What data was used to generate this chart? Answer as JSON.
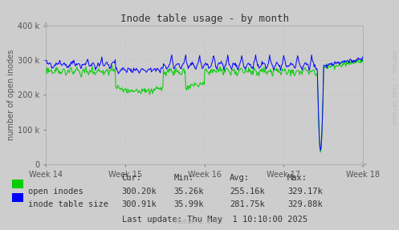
{
  "title": "Inode table usage - by month",
  "ylabel": "number of open inodes",
  "background_color": "#CDCDCD",
  "plot_bg_color": "#CDCDCD",
  "grid_color": "#BBBBBB",
  "x_labels": [
    "Week 14",
    "Week 15",
    "Week 16",
    "Week 17",
    "Week 18"
  ],
  "ylim": [
    0,
    400000
  ],
  "yticks": [
    0,
    100000,
    200000,
    300000,
    400000
  ],
  "green_color": "#00CC00",
  "blue_color": "#0000FF",
  "legend_labels": [
    "open inodes",
    "inode table size"
  ],
  "stats_headers": [
    "Cur:",
    "Min:",
    "Avg:",
    "Max:"
  ],
  "stats_cur": [
    "300.20k",
    "300.91k"
  ],
  "stats_min": [
    "35.26k",
    "35.99k"
  ],
  "stats_avg": [
    "255.16k",
    "281.75k"
  ],
  "stats_max": [
    "329.17k",
    "329.88k"
  ],
  "last_update": "Last update: Thu May  1 10:10:00 2025",
  "munin_version": "Munin 2.0.67",
  "rrdtool_text": "RRDTOOL / TOBI OETIKER",
  "n_points": 500
}
